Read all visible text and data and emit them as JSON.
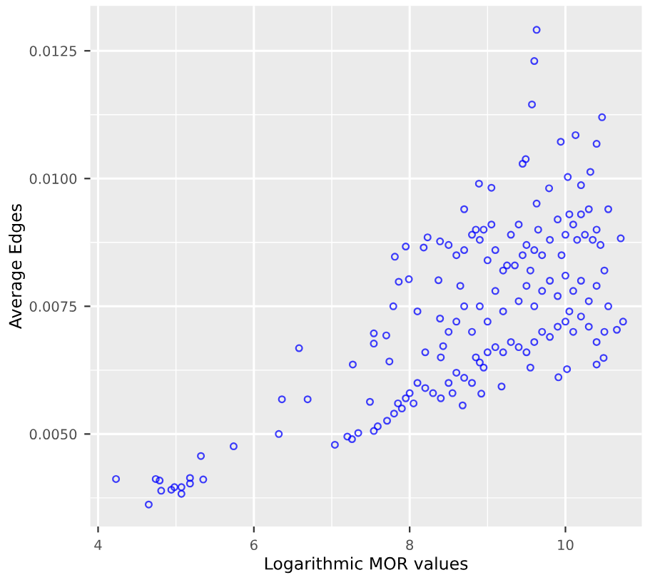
{
  "chart_data": {
    "type": "scatter",
    "xlabel": "Logarithmic MOR values",
    "ylabel": "Average Edges",
    "xlim": [
      3.9,
      10.98
    ],
    "ylim": [
      0.00319,
      0.01338
    ],
    "xticks": [
      4,
      6,
      8,
      10
    ],
    "yticks": [
      {
        "value": 0.005,
        "label": "0.0050"
      },
      {
        "value": 0.0075,
        "label": "0.0075"
      },
      {
        "value": 0.01,
        "label": "0.0100"
      },
      {
        "value": 0.0125,
        "label": "0.0125"
      }
    ],
    "grid": true,
    "marker": "circle",
    "series": [
      {
        "color": "#0000ff",
        "x": [
          4.23,
          4.74,
          4.79,
          4.81,
          4.65,
          4.94,
          4.98,
          5.07,
          5.07,
          5.18,
          5.18,
          5.35,
          5.32,
          5.74,
          6.32,
          6.36,
          6.58,
          6.69,
          7.04,
          7.2,
          7.26,
          7.34,
          7.27,
          9.63,
          9.6,
          9.57,
          10.47,
          10.4,
          10.13,
          9.94,
          9.49,
          9.45,
          10.32,
          10.03,
          8.89,
          9.05,
          9.79,
          10.2,
          8.7,
          9.63,
          10.55,
          10.71,
          10.74,
          10.66,
          10.49,
          10.4,
          10.02,
          9.91,
          9.18,
          8.92,
          8.68,
          8.18,
          7.95,
          7.81,
          7.99,
          7.86,
          7.79,
          7.7,
          7.54,
          7.54,
          7.74,
          7.49,
          7.54,
          7.59,
          7.71,
          8.39,
          8.43,
          8.37,
          8.23,
          8.39,
          7.8,
          7.85,
          7.9,
          7.95,
          8.0,
          8.05,
          8.1,
          8.2,
          8.3,
          8.4,
          8.5,
          8.55,
          8.6,
          8.7,
          8.8,
          8.85,
          8.9,
          8.95,
          9.0,
          9.1,
          9.2,
          9.3,
          9.4,
          9.5,
          9.55,
          9.6,
          9.7,
          9.8,
          9.9,
          10.0,
          10.05,
          10.1,
          10.2,
          10.3,
          10.4,
          10.5,
          8.1,
          8.2,
          8.4,
          8.5,
          8.6,
          8.7,
          8.8,
          8.9,
          9.0,
          9.1,
          9.2,
          9.4,
          9.5,
          9.6,
          9.7,
          9.8,
          9.9,
          10.0,
          10.1,
          10.2,
          10.3,
          10.4,
          10.5,
          10.55,
          8.5,
          8.6,
          8.65,
          8.7,
          8.8,
          8.85,
          8.9,
          8.95,
          9.0,
          9.05,
          9.1,
          9.2,
          9.25,
          9.3,
          9.35,
          9.4,
          9.45,
          9.5,
          9.55,
          9.6,
          9.65,
          9.7,
          9.8,
          9.9,
          9.95,
          10.0,
          10.05,
          10.1,
          10.15,
          10.2,
          10.25,
          10.3,
          10.35,
          10.4,
          10.45
        ],
        "values": [
          0.00412,
          0.00412,
          0.00409,
          0.00389,
          0.00362,
          0.00391,
          0.00396,
          0.00383,
          0.00396,
          0.00414,
          0.00403,
          0.00411,
          0.00457,
          0.00476,
          0.005,
          0.00568,
          0.00668,
          0.00568,
          0.00479,
          0.00495,
          0.0049,
          0.00502,
          0.00636,
          0.01291,
          0.0123,
          0.01145,
          0.0112,
          0.01068,
          0.01085,
          0.01072,
          0.01038,
          0.01029,
          0.01013,
          0.01003,
          0.0099,
          0.00982,
          0.00981,
          0.00987,
          0.0094,
          0.00951,
          0.0094,
          0.00883,
          0.0072,
          0.00704,
          0.00649,
          0.00636,
          0.00627,
          0.00611,
          0.00593,
          0.00579,
          0.00556,
          0.00865,
          0.00867,
          0.00847,
          0.00803,
          0.00798,
          0.0075,
          0.00693,
          0.00697,
          0.00677,
          0.00642,
          0.00563,
          0.00506,
          0.00515,
          0.00526,
          0.00726,
          0.00672,
          0.00801,
          0.00885,
          0.00877,
          0.0054,
          0.0056,
          0.0055,
          0.0057,
          0.0058,
          0.0056,
          0.006,
          0.0059,
          0.0058,
          0.0057,
          0.006,
          0.0058,
          0.0062,
          0.0061,
          0.006,
          0.0065,
          0.0064,
          0.0063,
          0.0066,
          0.0067,
          0.0066,
          0.0068,
          0.0067,
          0.0066,
          0.0063,
          0.0068,
          0.007,
          0.0069,
          0.0071,
          0.0072,
          0.0074,
          0.007,
          0.0073,
          0.0071,
          0.0068,
          0.007,
          0.0074,
          0.0066,
          0.0065,
          0.007,
          0.0072,
          0.0075,
          0.007,
          0.0075,
          0.0072,
          0.0078,
          0.0074,
          0.0076,
          0.0079,
          0.0075,
          0.0078,
          0.008,
          0.0077,
          0.0081,
          0.0078,
          0.008,
          0.0076,
          0.0079,
          0.0082,
          0.0075,
          0.0087,
          0.0085,
          0.0079,
          0.0086,
          0.0089,
          0.009,
          0.0088,
          0.009,
          0.0084,
          0.0091,
          0.0086,
          0.0082,
          0.0083,
          0.0089,
          0.0083,
          0.0091,
          0.0085,
          0.0087,
          0.0082,
          0.0086,
          0.009,
          0.0085,
          0.0088,
          0.0092,
          0.0085,
          0.0089,
          0.0093,
          0.0091,
          0.0088,
          0.0093,
          0.0089,
          0.0094,
          0.0088,
          0.009,
          0.0087
        ]
      }
    ]
  }
}
